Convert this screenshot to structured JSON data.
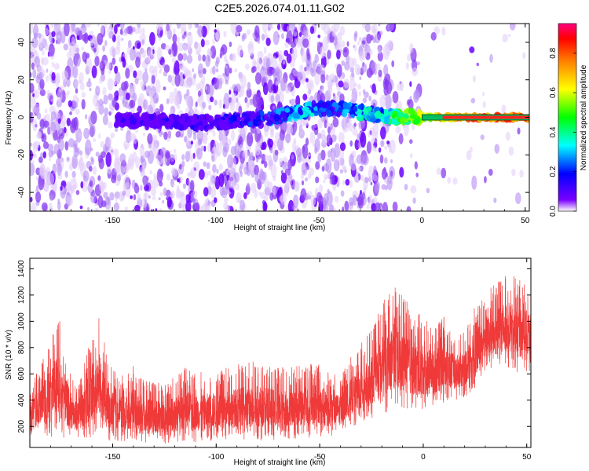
{
  "title": "C2E5.2026.074.01.11.G02",
  "colors": {
    "snr_line": "#f03a3a",
    "ridge_start": "#6a00ff",
    "ridge_end": "#ff0000",
    "background": "#ffffff",
    "axis": "#000000"
  },
  "chart_data": [
    {
      "type": "heatmap",
      "name": "spectrogram",
      "xlabel": "Height of straight line (km)",
      "ylabel": "Frequency (Hz)",
      "xlim": [
        -190,
        52
      ],
      "ylim": [
        -50,
        50
      ],
      "xticks": [
        -150,
        -100,
        -50,
        0,
        50
      ],
      "xtick_labels": [
        "-150",
        "-100",
        "-50",
        "0",
        "50"
      ],
      "yticks": [
        -40,
        -20,
        0,
        20,
        40
      ],
      "ytick_labels": [
        "-40",
        "-20",
        "0",
        "20",
        "40"
      ],
      "ridge": {
        "x": [
          -150,
          -130,
          -110,
          -95,
          -85,
          -75,
          -65,
          -55,
          -45,
          -38,
          -30,
          -20,
          -10,
          0,
          10,
          20,
          30,
          40,
          52
        ],
        "y": [
          -1,
          -2,
          -3,
          -2.5,
          -1,
          -1,
          2,
          4,
          5,
          5,
          3,
          1,
          0.5,
          0,
          0,
          0,
          0,
          0,
          0
        ],
        "amplitude": [
          0.15,
          0.18,
          0.2,
          0.22,
          0.25,
          0.28,
          0.35,
          0.4,
          0.3,
          0.35,
          0.42,
          0.45,
          0.55,
          0.7,
          0.8,
          0.88,
          0.92,
          0.95,
          0.95
        ]
      },
      "colorbar": {
        "label": "Normalized spectral amplitude",
        "range": [
          0,
          0.95
        ],
        "ticks": [
          0.0,
          0.2,
          0.4,
          0.6,
          0.8
        ],
        "tick_labels": [
          "0.0",
          "0.2",
          "0.4",
          "0.6",
          "0.8"
        ],
        "colors": [
          "#ffffff",
          "#7a00ff",
          "#0000ff",
          "#00ffff",
          "#00ff00",
          "#ffff00",
          "#ff8000",
          "#ff0000",
          "#ff0080"
        ]
      }
    },
    {
      "type": "line",
      "name": "snr",
      "xlabel": "Height of straight line (km)",
      "ylabel": "SNR (10 * v/v)",
      "xlim": [
        -190,
        52
      ],
      "ylim": [
        40,
        1480
      ],
      "xticks": [
        -150,
        -100,
        -50,
        0,
        50
      ],
      "xtick_labels": [
        "-150",
        "-100",
        "-50",
        "0",
        "50"
      ],
      "yticks": [
        200,
        400,
        600,
        800,
        1000,
        1200,
        1400
      ],
      "ytick_labels": [
        "200",
        "400",
        "600",
        "800",
        "1000",
        "1200",
        "1400"
      ],
      "envelope": {
        "x": [
          -190,
          -185,
          -180,
          -176,
          -172,
          -168,
          -165,
          -160,
          -157,
          -154,
          -150,
          -145,
          -140,
          -135,
          -130,
          -125,
          -120,
          -115,
          -110,
          -100,
          -90,
          -80,
          -70,
          -60,
          -50,
          -45,
          -40,
          -35,
          -30,
          -25,
          -20,
          -15,
          -10,
          -5,
          0,
          5,
          10,
          15,
          20,
          25,
          30,
          35,
          40,
          45,
          52
        ],
        "upper": [
          520,
          620,
          850,
          1000,
          700,
          500,
          560,
          880,
          1040,
          820,
          600,
          560,
          640,
          560,
          520,
          520,
          560,
          620,
          580,
          600,
          640,
          680,
          620,
          640,
          680,
          580,
          560,
          700,
          800,
          900,
          1100,
          1250,
          1150,
          1050,
          1000,
          950,
          1000,
          880,
          920,
          1100,
          1200,
          1250,
          1350,
          1300,
          1250
        ],
        "lower": [
          120,
          140,
          120,
          130,
          100,
          90,
          100,
          110,
          130,
          100,
          80,
          80,
          90,
          80,
          70,
          70,
          80,
          90,
          80,
          90,
          100,
          90,
          100,
          110,
          120,
          120,
          150,
          200,
          220,
          250,
          280,
          320,
          320,
          300,
          320,
          340,
          380,
          400,
          420,
          480,
          600,
          620,
          660,
          600,
          620
        ]
      }
    }
  ]
}
